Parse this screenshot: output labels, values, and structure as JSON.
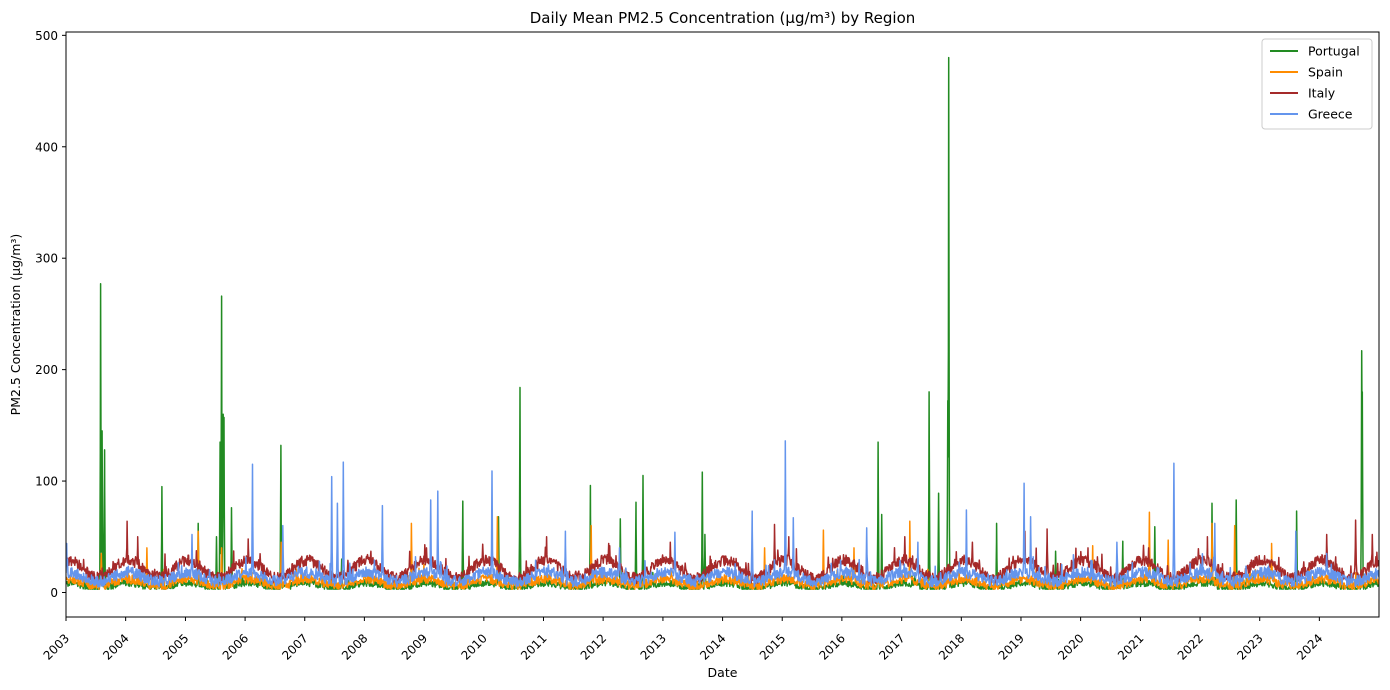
{
  "chart_data": {
    "type": "line",
    "title": "Daily Mean PM2.5 Concentration (µg/m³) by Region",
    "xlabel": "Date",
    "ylabel": "PM2.5 Concentration (µg/m³)",
    "xlim": [
      "2003-01-01",
      "2024-12-31"
    ],
    "ylim": [
      -22,
      503
    ],
    "x_ticks": [
      "2003",
      "2004",
      "2005",
      "2006",
      "2007",
      "2008",
      "2009",
      "2010",
      "2011",
      "2012",
      "2013",
      "2014",
      "2015",
      "2016",
      "2017",
      "2018",
      "2019",
      "2020",
      "2021",
      "2022",
      "2023",
      "2024"
    ],
    "y_ticks": [
      0,
      100,
      200,
      300,
      400,
      500
    ],
    "grid": false,
    "legend": "top-right",
    "series": [
      {
        "name": "Portugal",
        "color": "#228b22",
        "baseline": {
          "mean": 6,
          "amplitude": 2.5,
          "noise": 3,
          "min": 3
        },
        "peaks": [
          [
            "2003-08-01",
            277
          ],
          [
            "2003-08-10",
            145
          ],
          [
            "2003-08-25",
            128
          ],
          [
            "2004-08-10",
            95
          ],
          [
            "2005-03-20",
            62
          ],
          [
            "2005-07-10",
            50
          ],
          [
            "2005-08-01",
            135
          ],
          [
            "2005-08-10",
            266
          ],
          [
            "2005-08-20",
            160
          ],
          [
            "2005-08-25",
            157
          ],
          [
            "2005-10-10",
            76
          ],
          [
            "2006-08-08",
            132
          ],
          [
            "2007-08-15",
            30
          ],
          [
            "2009-08-25",
            82
          ],
          [
            "2010-04-01",
            68
          ],
          [
            "2010-08-10",
            184
          ],
          [
            "2011-10-15",
            96
          ],
          [
            "2012-04-15",
            66
          ],
          [
            "2012-07-20",
            81
          ],
          [
            "2012-09-01",
            105
          ],
          [
            "2013-08-30",
            108
          ],
          [
            "2013-09-15",
            52
          ],
          [
            "2016-08-10",
            135
          ],
          [
            "2016-09-01",
            70
          ],
          [
            "2017-06-18",
            180
          ],
          [
            "2017-08-15",
            89
          ],
          [
            "2017-10-10",
            172
          ],
          [
            "2017-10-16",
            480
          ],
          [
            "2018-08-05",
            62
          ],
          [
            "2019-08-01",
            37
          ],
          [
            "2020-09-15",
            46
          ],
          [
            "2021-03-30",
            59
          ],
          [
            "2022-03-15",
            80
          ],
          [
            "2022-08-10",
            83
          ],
          [
            "2023-08-15",
            73
          ],
          [
            "2024-09-16",
            217
          ],
          [
            "2024-09-20",
            180
          ]
        ]
      },
      {
        "name": "Spain",
        "color": "#ff8c00",
        "baseline": {
          "mean": 9,
          "amplitude": 3,
          "noise": 4,
          "min": 3
        },
        "peaks": [
          [
            "2003-08-05",
            35
          ],
          [
            "2004-05-10",
            40
          ],
          [
            "2005-03-20",
            55
          ],
          [
            "2005-08-10",
            40
          ],
          [
            "2006-08-10",
            45
          ],
          [
            "2008-10-15",
            62
          ],
          [
            "2010-03-25",
            68
          ],
          [
            "2011-10-20",
            60
          ],
          [
            "2014-09-15",
            40
          ],
          [
            "2015-09-10",
            56
          ],
          [
            "2016-03-15",
            40
          ],
          [
            "2017-02-20",
            64
          ],
          [
            "2020-03-15",
            42
          ],
          [
            "2021-02-25",
            72
          ],
          [
            "2021-06-20",
            47
          ],
          [
            "2022-03-15",
            62
          ],
          [
            "2022-08-01",
            60
          ],
          [
            "2023-03-15",
            44
          ]
        ]
      },
      {
        "name": "Italy",
        "color": "#a52a2a",
        "baseline": {
          "mean": 21,
          "amplitude": 8,
          "noise": 5,
          "min": 4
        },
        "peaks": [
          [
            "2004-01-10",
            64
          ],
          [
            "2004-03-15",
            50
          ],
          [
            "2006-01-20",
            48
          ],
          [
            "2008-02-10",
            37
          ],
          [
            "2009-01-15",
            40
          ],
          [
            "2011-01-20",
            50
          ],
          [
            "2012-02-10",
            42
          ],
          [
            "2013-02-15",
            45
          ],
          [
            "2014-11-15",
            61
          ],
          [
            "2015-02-10",
            50
          ],
          [
            "2017-01-20",
            50
          ],
          [
            "2018-03-10",
            45
          ],
          [
            "2019-01-25",
            55
          ],
          [
            "2019-06-10",
            57
          ],
          [
            "2020-02-15",
            40
          ],
          [
            "2021-02-20",
            40
          ],
          [
            "2022-02-15",
            50
          ],
          [
            "2024-02-15",
            52
          ],
          [
            "2024-08-10",
            65
          ],
          [
            "2024-11-20",
            52
          ]
        ]
      },
      {
        "name": "Greece",
        "color": "#6495ed",
        "baseline": {
          "mean": 14,
          "amplitude": 4,
          "noise": 5,
          "min": 2
        },
        "peaks": [
          [
            "2003-01-05",
            44
          ],
          [
            "2005-02-10",
            52
          ],
          [
            "2006-02-15",
            115
          ],
          [
            "2006-08-20",
            60
          ],
          [
            "2007-06-15",
            104
          ],
          [
            "2007-07-20",
            80
          ],
          [
            "2007-08-25",
            117
          ],
          [
            "2008-04-20",
            78
          ],
          [
            "2009-02-10",
            83
          ],
          [
            "2009-03-25",
            91
          ],
          [
            "2010-02-20",
            109
          ],
          [
            "2011-05-15",
            55
          ],
          [
            "2012-04-10",
            40
          ],
          [
            "2013-03-15",
            54
          ],
          [
            "2014-07-01",
            73
          ],
          [
            "2015-01-20",
            136
          ],
          [
            "2015-03-10",
            67
          ],
          [
            "2016-06-01",
            58
          ],
          [
            "2017-04-10",
            45
          ],
          [
            "2018-02-01",
            74
          ],
          [
            "2019-01-20",
            98
          ],
          [
            "2019-03-01",
            68
          ],
          [
            "2020-08-10",
            45
          ],
          [
            "2021-07-25",
            116
          ],
          [
            "2022-04-01",
            62
          ],
          [
            "2023-08-10",
            55
          ],
          [
            "2024-02-15",
            35
          ]
        ]
      }
    ]
  }
}
